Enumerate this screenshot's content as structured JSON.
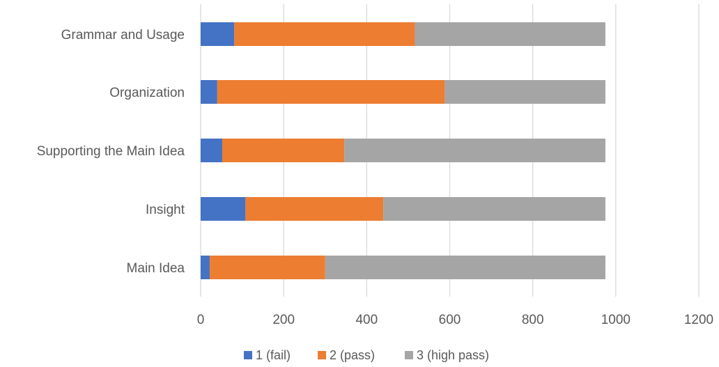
{
  "chart_data": {
    "type": "bar",
    "orientation": "horizontal",
    "stacked": true,
    "categories": [
      "Main Idea",
      "Insight",
      "Supporting the Main Idea",
      "Organization",
      "Grammar and Usage"
    ],
    "series": [
      {
        "name": "1 (fail)",
        "color": "#4472C4",
        "values": [
          22,
          108,
          52,
          40,
          81
        ]
      },
      {
        "name": "2 (pass)",
        "color": "#ED7D31",
        "values": [
          278,
          332,
          294,
          548,
          435
        ]
      },
      {
        "name": "3 (high pass)",
        "color": "#A5A5A5",
        "values": [
          675,
          535,
          629,
          387,
          459
        ]
      }
    ],
    "xlim": [
      0,
      1200
    ],
    "xticks": [
      "0",
      "200",
      "400",
      "600",
      "800",
      "1000",
      "1200"
    ],
    "grid": true,
    "legend": "bottom"
  }
}
